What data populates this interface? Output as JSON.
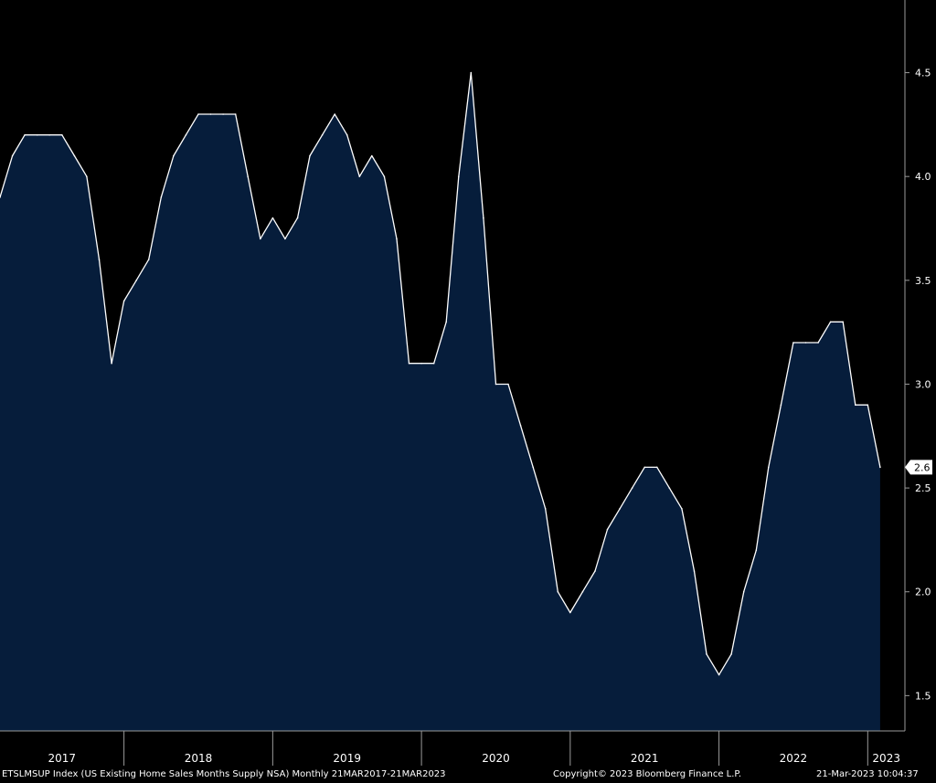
{
  "footer": {
    "series_description": "ETSLMSUP Index (US Existing Home Sales Months Supply NSA)  Monthly 21MAR2017-21MAR2023",
    "copyright": "Copyright© 2023 Bloomberg Finance L.P.",
    "timestamp": "21-Mar-2023 10:04:37"
  },
  "colors": {
    "background": "#000000",
    "area_fill": "#061d3b",
    "line": "#ffffff",
    "axis": "#9a9a9a",
    "text": "#ffffff",
    "last_value_bg": "#ffffff",
    "last_value_text": "#000000"
  },
  "chart_data": {
    "type": "area",
    "title": "",
    "xlabel": "",
    "ylabel": "",
    "ylim": [
      1.33,
      4.85
    ],
    "xlim": [
      "2017-03",
      "2023-04"
    ],
    "y_ticks": [
      "1.5",
      "2.0",
      "2.5",
      "3.0",
      "3.5",
      "4.0",
      "4.5"
    ],
    "x_ticks": [
      "2017",
      "2018",
      "2019",
      "2020",
      "2021",
      "2022",
      "2023"
    ],
    "last_value_label": "2.6",
    "grid": false,
    "y_axis_position": "right",
    "series": [
      {
        "x": [
          "2017-03",
          "2017-04",
          "2017-05",
          "2017-06",
          "2017-07",
          "2017-08",
          "2017-09",
          "2017-10",
          "2017-11",
          "2017-12",
          "2018-01",
          "2018-02",
          "2018-03",
          "2018-04",
          "2018-05",
          "2018-06",
          "2018-07",
          "2018-08",
          "2018-09",
          "2018-10",
          "2018-11",
          "2018-12",
          "2019-01",
          "2019-02",
          "2019-03",
          "2019-04",
          "2019-05",
          "2019-06",
          "2019-07",
          "2019-08",
          "2019-09",
          "2019-10",
          "2019-11",
          "2019-12",
          "2020-01",
          "2020-02",
          "2020-03",
          "2020-04",
          "2020-05",
          "2020-06",
          "2020-07",
          "2020-08",
          "2020-09",
          "2020-10",
          "2020-11",
          "2020-12",
          "2021-01",
          "2021-02",
          "2021-03",
          "2021-04",
          "2021-05",
          "2021-06",
          "2021-07",
          "2021-08",
          "2021-09",
          "2021-10",
          "2021-11",
          "2021-12",
          "2022-01",
          "2022-02",
          "2022-03",
          "2022-04",
          "2022-05",
          "2022-06",
          "2022-07",
          "2022-08",
          "2022-09",
          "2022-10",
          "2022-11",
          "2022-12",
          "2023-01",
          "2023-02"
        ],
        "values": [
          3.9,
          4.1,
          4.2,
          4.2,
          4.2,
          4.2,
          4.1,
          4.0,
          3.6,
          3.1,
          3.4,
          3.5,
          3.6,
          3.9,
          4.1,
          4.2,
          4.3,
          4.3,
          4.3,
          4.3,
          4.0,
          3.7,
          3.8,
          3.7,
          3.8,
          4.1,
          4.2,
          4.3,
          4.2,
          4.0,
          4.1,
          4.0,
          3.7,
          3.1,
          3.1,
          3.1,
          3.3,
          4.0,
          4.5,
          3.8,
          3.0,
          3.0,
          2.8,
          2.6,
          2.4,
          2.0,
          1.9,
          2.0,
          2.1,
          2.3,
          2.4,
          2.5,
          2.6,
          2.6,
          2.5,
          2.4,
          2.1,
          1.7,
          1.6,
          1.7,
          2.0,
          2.2,
          2.6,
          2.9,
          3.2,
          3.2,
          3.2,
          3.3,
          3.3,
          2.9,
          2.9,
          2.6
        ]
      }
    ]
  }
}
